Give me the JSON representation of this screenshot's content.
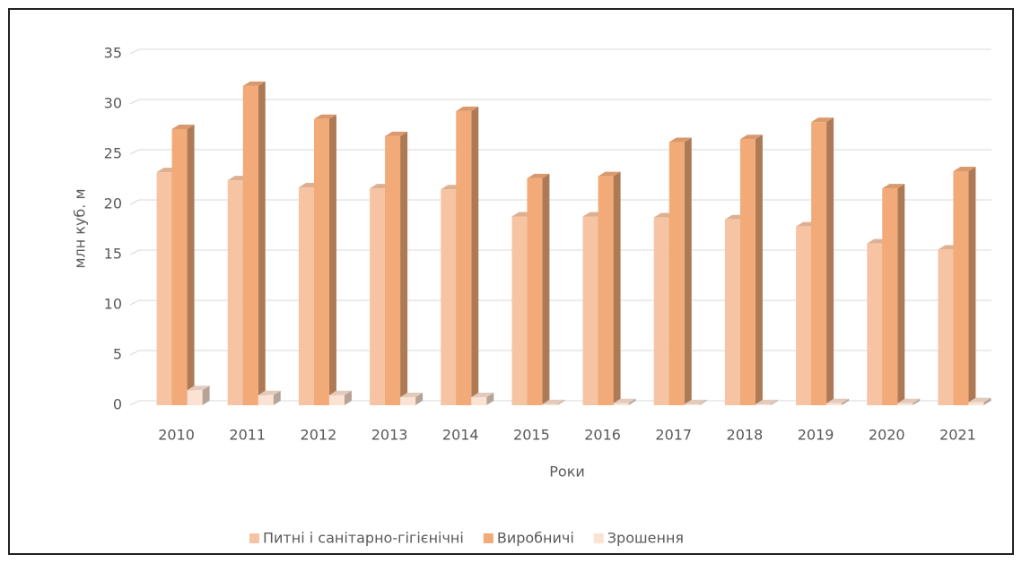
{
  "chart_data": {
    "type": "bar3d",
    "y_label": "млн куб. м",
    "x_label": "Роки",
    "categories": [
      "2010",
      "2011",
      "2012",
      "2013",
      "2014",
      "2015",
      "2016",
      "2017",
      "2018",
      "2019",
      "2020",
      "2021"
    ],
    "series": [
      {
        "name": "Питні і санітарно-гігієнічні",
        "color": "#f6c4a2",
        "values": [
          23.2,
          22.4,
          21.7,
          21.6,
          21.5,
          18.8,
          18.8,
          18.7,
          18.5,
          17.8,
          16.1,
          15.5
        ]
      },
      {
        "name": "Виробничі",
        "color": "#f2aa78",
        "values": [
          27.5,
          31.8,
          28.5,
          26.8,
          29.3,
          22.6,
          22.8,
          26.2,
          26.5,
          28.2,
          21.6,
          23.3
        ]
      },
      {
        "name": "Зрошення",
        "color": "#fbe2d2",
        "values": [
          1.5,
          1.0,
          1.0,
          0.8,
          0.8,
          0.1,
          0.2,
          0.1,
          0.1,
          0.2,
          0.2,
          0.3
        ]
      }
    ],
    "ylim": [
      0,
      35
    ],
    "yticks": [
      0,
      5,
      10,
      15,
      20,
      25,
      30,
      35
    ],
    "grid": true,
    "legend": "bottom"
  }
}
